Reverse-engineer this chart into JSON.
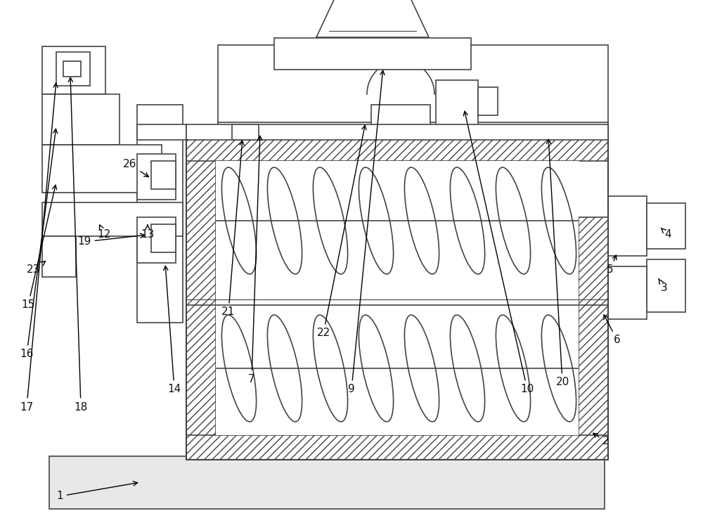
{
  "bg_color": "#ffffff",
  "line_color": "#444444",
  "figsize": [
    10.0,
    7.54
  ],
  "dpi": 100
}
